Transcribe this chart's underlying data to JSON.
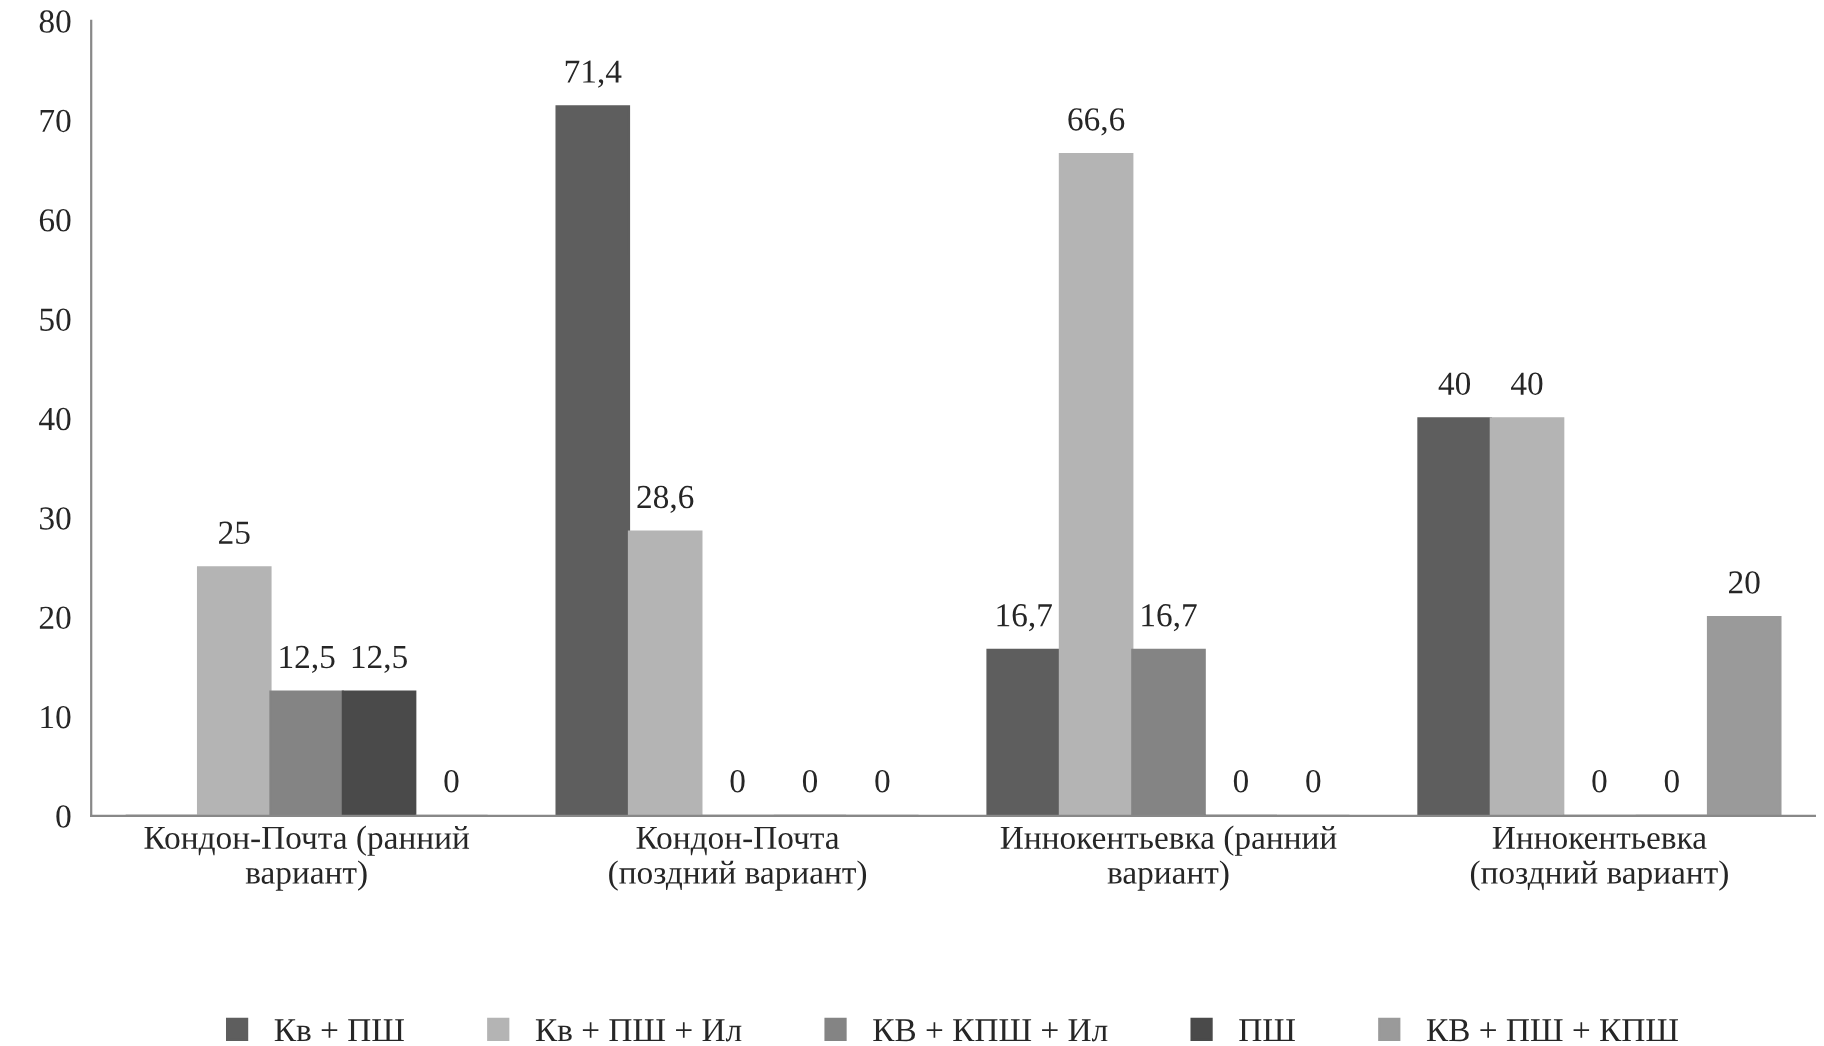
{
  "chart_data": {
    "type": "bar",
    "categories": [
      "Кондон-Почта (ранний\nвариант)",
      "Кондон-Почта\n(поздний вариант)",
      "Иннокентьевка (ранний\nвариант)",
      "Иннокентьевка\n(поздний вариант)"
    ],
    "series": [
      {
        "name": "Кв + ПШ",
        "color": "#5e5e5e",
        "values": [
          0,
          71.4,
          16.7,
          40
        ],
        "value_labels": [
          null,
          "71,4",
          "16,7",
          "40"
        ]
      },
      {
        "name": "Кв + ПШ + Ил",
        "color": "#b4b4b4",
        "values": [
          25,
          28.6,
          66.6,
          40
        ],
        "value_labels": [
          "25",
          "28,6",
          "66,6",
          "40"
        ]
      },
      {
        "name": "КВ + КПШ + Ил",
        "color": "#848484",
        "values": [
          12.5,
          0,
          16.7,
          0
        ],
        "value_labels": [
          "12,5",
          "0",
          "16,7",
          "0"
        ]
      },
      {
        "name": "ПШ",
        "color": "#4a4a4a",
        "values": [
          12.5,
          0,
          0,
          0
        ],
        "value_labels": [
          "12,5",
          "0",
          "0",
          "0"
        ]
      },
      {
        "name": "КВ + ПШ + КПШ",
        "color": "#9a9a9a",
        "values": [
          0,
          0,
          0,
          20
        ],
        "value_labels": [
          "0",
          "0",
          "0",
          "20"
        ]
      }
    ],
    "ylim": [
      0,
      80
    ],
    "yticks": [
      0,
      10,
      20,
      30,
      40,
      50,
      60,
      70,
      80
    ],
    "grid": false,
    "legend": "bottom"
  }
}
